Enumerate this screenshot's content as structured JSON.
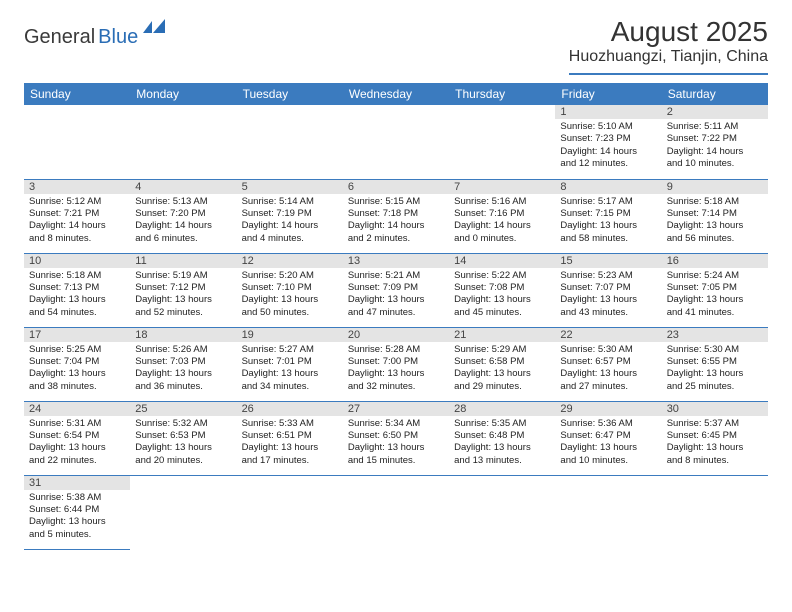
{
  "brand": {
    "part1": "General",
    "part2": "Blue"
  },
  "title": "August 2025",
  "location": "Huozhuangzi, Tianjin, China",
  "colors": {
    "header_bg": "#3b7bbf",
    "header_text": "#ffffff",
    "daynum_bg": "#e4e4e4",
    "rule": "#3b7bbf",
    "brand_blue": "#2a6db5"
  },
  "weekdays": [
    "Sunday",
    "Monday",
    "Tuesday",
    "Wednesday",
    "Thursday",
    "Friday",
    "Saturday"
  ],
  "weeks": [
    [
      null,
      null,
      null,
      null,
      null,
      {
        "n": "1",
        "sr": "Sunrise: 5:10 AM",
        "ss": "Sunset: 7:23 PM",
        "dl1": "Daylight: 14 hours",
        "dl2": "and 12 minutes."
      },
      {
        "n": "2",
        "sr": "Sunrise: 5:11 AM",
        "ss": "Sunset: 7:22 PM",
        "dl1": "Daylight: 14 hours",
        "dl2": "and 10 minutes."
      }
    ],
    [
      {
        "n": "3",
        "sr": "Sunrise: 5:12 AM",
        "ss": "Sunset: 7:21 PM",
        "dl1": "Daylight: 14 hours",
        "dl2": "and 8 minutes."
      },
      {
        "n": "4",
        "sr": "Sunrise: 5:13 AM",
        "ss": "Sunset: 7:20 PM",
        "dl1": "Daylight: 14 hours",
        "dl2": "and 6 minutes."
      },
      {
        "n": "5",
        "sr": "Sunrise: 5:14 AM",
        "ss": "Sunset: 7:19 PM",
        "dl1": "Daylight: 14 hours",
        "dl2": "and 4 minutes."
      },
      {
        "n": "6",
        "sr": "Sunrise: 5:15 AM",
        "ss": "Sunset: 7:18 PM",
        "dl1": "Daylight: 14 hours",
        "dl2": "and 2 minutes."
      },
      {
        "n": "7",
        "sr": "Sunrise: 5:16 AM",
        "ss": "Sunset: 7:16 PM",
        "dl1": "Daylight: 14 hours",
        "dl2": "and 0 minutes."
      },
      {
        "n": "8",
        "sr": "Sunrise: 5:17 AM",
        "ss": "Sunset: 7:15 PM",
        "dl1": "Daylight: 13 hours",
        "dl2": "and 58 minutes."
      },
      {
        "n": "9",
        "sr": "Sunrise: 5:18 AM",
        "ss": "Sunset: 7:14 PM",
        "dl1": "Daylight: 13 hours",
        "dl2": "and 56 minutes."
      }
    ],
    [
      {
        "n": "10",
        "sr": "Sunrise: 5:18 AM",
        "ss": "Sunset: 7:13 PM",
        "dl1": "Daylight: 13 hours",
        "dl2": "and 54 minutes."
      },
      {
        "n": "11",
        "sr": "Sunrise: 5:19 AM",
        "ss": "Sunset: 7:12 PM",
        "dl1": "Daylight: 13 hours",
        "dl2": "and 52 minutes."
      },
      {
        "n": "12",
        "sr": "Sunrise: 5:20 AM",
        "ss": "Sunset: 7:10 PM",
        "dl1": "Daylight: 13 hours",
        "dl2": "and 50 minutes."
      },
      {
        "n": "13",
        "sr": "Sunrise: 5:21 AM",
        "ss": "Sunset: 7:09 PM",
        "dl1": "Daylight: 13 hours",
        "dl2": "and 47 minutes."
      },
      {
        "n": "14",
        "sr": "Sunrise: 5:22 AM",
        "ss": "Sunset: 7:08 PM",
        "dl1": "Daylight: 13 hours",
        "dl2": "and 45 minutes."
      },
      {
        "n": "15",
        "sr": "Sunrise: 5:23 AM",
        "ss": "Sunset: 7:07 PM",
        "dl1": "Daylight: 13 hours",
        "dl2": "and 43 minutes."
      },
      {
        "n": "16",
        "sr": "Sunrise: 5:24 AM",
        "ss": "Sunset: 7:05 PM",
        "dl1": "Daylight: 13 hours",
        "dl2": "and 41 minutes."
      }
    ],
    [
      {
        "n": "17",
        "sr": "Sunrise: 5:25 AM",
        "ss": "Sunset: 7:04 PM",
        "dl1": "Daylight: 13 hours",
        "dl2": "and 38 minutes."
      },
      {
        "n": "18",
        "sr": "Sunrise: 5:26 AM",
        "ss": "Sunset: 7:03 PM",
        "dl1": "Daylight: 13 hours",
        "dl2": "and 36 minutes."
      },
      {
        "n": "19",
        "sr": "Sunrise: 5:27 AM",
        "ss": "Sunset: 7:01 PM",
        "dl1": "Daylight: 13 hours",
        "dl2": "and 34 minutes."
      },
      {
        "n": "20",
        "sr": "Sunrise: 5:28 AM",
        "ss": "Sunset: 7:00 PM",
        "dl1": "Daylight: 13 hours",
        "dl2": "and 32 minutes."
      },
      {
        "n": "21",
        "sr": "Sunrise: 5:29 AM",
        "ss": "Sunset: 6:58 PM",
        "dl1": "Daylight: 13 hours",
        "dl2": "and 29 minutes."
      },
      {
        "n": "22",
        "sr": "Sunrise: 5:30 AM",
        "ss": "Sunset: 6:57 PM",
        "dl1": "Daylight: 13 hours",
        "dl2": "and 27 minutes."
      },
      {
        "n": "23",
        "sr": "Sunrise: 5:30 AM",
        "ss": "Sunset: 6:55 PM",
        "dl1": "Daylight: 13 hours",
        "dl2": "and 25 minutes."
      }
    ],
    [
      {
        "n": "24",
        "sr": "Sunrise: 5:31 AM",
        "ss": "Sunset: 6:54 PM",
        "dl1": "Daylight: 13 hours",
        "dl2": "and 22 minutes."
      },
      {
        "n": "25",
        "sr": "Sunrise: 5:32 AM",
        "ss": "Sunset: 6:53 PM",
        "dl1": "Daylight: 13 hours",
        "dl2": "and 20 minutes."
      },
      {
        "n": "26",
        "sr": "Sunrise: 5:33 AM",
        "ss": "Sunset: 6:51 PM",
        "dl1": "Daylight: 13 hours",
        "dl2": "and 17 minutes."
      },
      {
        "n": "27",
        "sr": "Sunrise: 5:34 AM",
        "ss": "Sunset: 6:50 PM",
        "dl1": "Daylight: 13 hours",
        "dl2": "and 15 minutes."
      },
      {
        "n": "28",
        "sr": "Sunrise: 5:35 AM",
        "ss": "Sunset: 6:48 PM",
        "dl1": "Daylight: 13 hours",
        "dl2": "and 13 minutes."
      },
      {
        "n": "29",
        "sr": "Sunrise: 5:36 AM",
        "ss": "Sunset: 6:47 PM",
        "dl1": "Daylight: 13 hours",
        "dl2": "and 10 minutes."
      },
      {
        "n": "30",
        "sr": "Sunrise: 5:37 AM",
        "ss": "Sunset: 6:45 PM",
        "dl1": "Daylight: 13 hours",
        "dl2": "and 8 minutes."
      }
    ],
    [
      {
        "n": "31",
        "sr": "Sunrise: 5:38 AM",
        "ss": "Sunset: 6:44 PM",
        "dl1": "Daylight: 13 hours",
        "dl2": "and 5 minutes."
      },
      null,
      null,
      null,
      null,
      null,
      null
    ]
  ]
}
